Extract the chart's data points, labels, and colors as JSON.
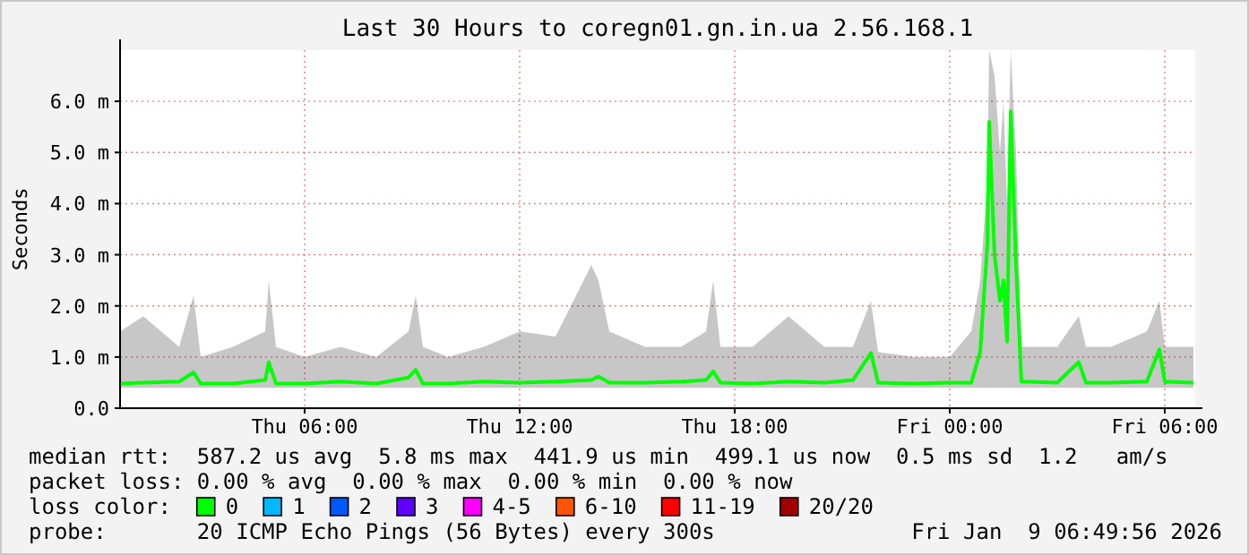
{
  "chart_data": {
    "type": "line",
    "title": "Last 30 Hours to coregn01.gn.in.ua 2.56.168.1",
    "ylabel": "Seconds",
    "xlim": [
      "2026-01-08T00:51",
      "2026-01-09T06:51"
    ],
    "xticks": [
      {
        "value": "2026-01-08T06:00",
        "label": "Thu 06:00"
      },
      {
        "value": "2026-01-08T12:00",
        "label": "Thu 12:00"
      },
      {
        "value": "2026-01-08T18:00",
        "label": "Thu 18:00"
      },
      {
        "value": "2026-01-09T00:00",
        "label": "Fri 00:00"
      },
      {
        "value": "2026-01-09T06:00",
        "label": "Fri 06:00"
      }
    ],
    "ylim": [
      0,
      7
    ],
    "yticks": [
      {
        "value": 0,
        "label": "0.0"
      },
      {
        "value": 1,
        "label": "1.0 m"
      },
      {
        "value": 2,
        "label": "2.0 m"
      },
      {
        "value": 3,
        "label": "3.0 m"
      },
      {
        "value": 4,
        "label": "4.0 m"
      },
      {
        "value": 5,
        "label": "5.0 m"
      },
      {
        "value": 6,
        "label": "6.0 m"
      }
    ],
    "grid": true,
    "legend": "bottom",
    "legend_title": "loss color:",
    "marker": "none",
    "line_style": "solid",
    "series": [
      {
        "name": "0",
        "color": "#00ff00",
        "x": [
          "2026-01-08T00:51",
          "2026-01-08T01:30",
          "2026-01-08T02:30",
          "2026-01-08T02:54",
          "2026-01-08T03:06",
          "2026-01-08T04:00",
          "2026-01-08T04:54",
          "2026-01-08T05:00",
          "2026-01-08T05:12",
          "2026-01-08T06:00",
          "2026-01-08T07:00",
          "2026-01-08T08:00",
          "2026-01-08T08:54",
          "2026-01-08T09:06",
          "2026-01-08T09:18",
          "2026-01-08T10:00",
          "2026-01-08T11:00",
          "2026-01-08T12:00",
          "2026-01-08T13:00",
          "2026-01-08T14:00",
          "2026-01-08T14:12",
          "2026-01-08T14:30",
          "2026-01-08T15:30",
          "2026-01-08T16:30",
          "2026-01-08T17:12",
          "2026-01-08T17:24",
          "2026-01-08T17:36",
          "2026-01-08T18:30",
          "2026-01-08T19:30",
          "2026-01-08T20:30",
          "2026-01-08T21:18",
          "2026-01-08T21:48",
          "2026-01-08T22:00",
          "2026-01-08T23:00",
          "2026-01-09T00:00",
          "2026-01-09T00:36",
          "2026-01-09T00:51",
          "2026-01-09T01:03",
          "2026-01-09T01:06",
          "2026-01-09T01:15",
          "2026-01-09T01:24",
          "2026-01-09T01:30",
          "2026-01-09T01:36",
          "2026-01-09T01:42",
          "2026-01-09T01:51",
          "2026-01-09T02:00",
          "2026-01-09T03:00",
          "2026-01-09T03:36",
          "2026-01-09T03:48",
          "2026-01-09T04:30",
          "2026-01-09T05:30",
          "2026-01-09T05:51",
          "2026-01-09T06:00",
          "2026-01-09T06:48"
        ],
        "values": [
          0.48,
          0.5,
          0.52,
          0.7,
          0.48,
          0.48,
          0.55,
          0.9,
          0.48,
          0.48,
          0.52,
          0.48,
          0.6,
          0.75,
          0.48,
          0.48,
          0.52,
          0.5,
          0.52,
          0.55,
          0.62,
          0.5,
          0.5,
          0.52,
          0.55,
          0.72,
          0.5,
          0.48,
          0.52,
          0.5,
          0.55,
          1.08,
          0.5,
          0.48,
          0.5,
          0.5,
          1.1,
          3.2,
          5.6,
          3.0,
          2.1,
          2.5,
          1.3,
          5.8,
          2.8,
          0.52,
          0.5,
          0.9,
          0.5,
          0.5,
          0.52,
          1.15,
          0.52,
          0.5
        ],
        "lower": [
          0.4,
          0.4,
          0.4,
          0.4,
          0.4,
          0.4,
          0.4,
          0.4,
          0.4,
          0.4,
          0.4,
          0.4,
          0.4,
          0.4,
          0.4,
          0.4,
          0.4,
          0.4,
          0.4,
          0.4,
          0.4,
          0.4,
          0.4,
          0.4,
          0.4,
          0.4,
          0.4,
          0.4,
          0.4,
          0.4,
          0.4,
          0.4,
          0.4,
          0.4,
          0.4,
          0.4,
          0.4,
          0.4,
          0.4,
          0.4,
          0.4,
          0.4,
          0.4,
          0.4,
          0.4,
          0.4,
          0.4,
          0.4,
          0.4,
          0.4,
          0.4,
          0.4,
          0.4,
          0.4
        ],
        "upper": [
          1.5,
          1.8,
          1.2,
          2.2,
          1.0,
          1.2,
          1.5,
          2.5,
          1.2,
          1.0,
          1.2,
          1.0,
          1.5,
          2.2,
          1.2,
          1.0,
          1.2,
          1.5,
          1.4,
          2.8,
          2.5,
          1.5,
          1.2,
          1.2,
          1.5,
          2.5,
          1.2,
          1.2,
          1.8,
          1.2,
          1.2,
          2.1,
          1.1,
          1.0,
          1.0,
          1.5,
          2.5,
          4.5,
          7.0,
          6.5,
          5.0,
          6.0,
          4.0,
          7.0,
          5.0,
          1.2,
          1.2,
          1.8,
          1.2,
          1.2,
          1.5,
          2.1,
          1.2,
          1.2
        ]
      },
      {
        "name": "1",
        "color": "#00b8ff"
      },
      {
        "name": "2",
        "color": "#0059ff"
      },
      {
        "name": "3",
        "color": "#5e00ff"
      },
      {
        "name": "4-5",
        "color": "#ff00ff"
      },
      {
        "name": "6-10",
        "color": "#ff5500"
      },
      {
        "name": "11-19",
        "color": "#ff0000"
      },
      {
        "name": "20/20",
        "color": "#a10000"
      }
    ],
    "annotations": [
      "median rtt:  587.2 us avg  5.8 ms max  441.9 us min  499.1 us now  0.5 ms sd  1.2   am/s",
      "packet loss: 0.00 % avg  0.00 % max  0.00 % min  0.00 % now",
      "probe:       20 ICMP Echo Pings (56 Bytes) every 300s",
      "Fri Jan  9 06:49:56 2026"
    ]
  }
}
